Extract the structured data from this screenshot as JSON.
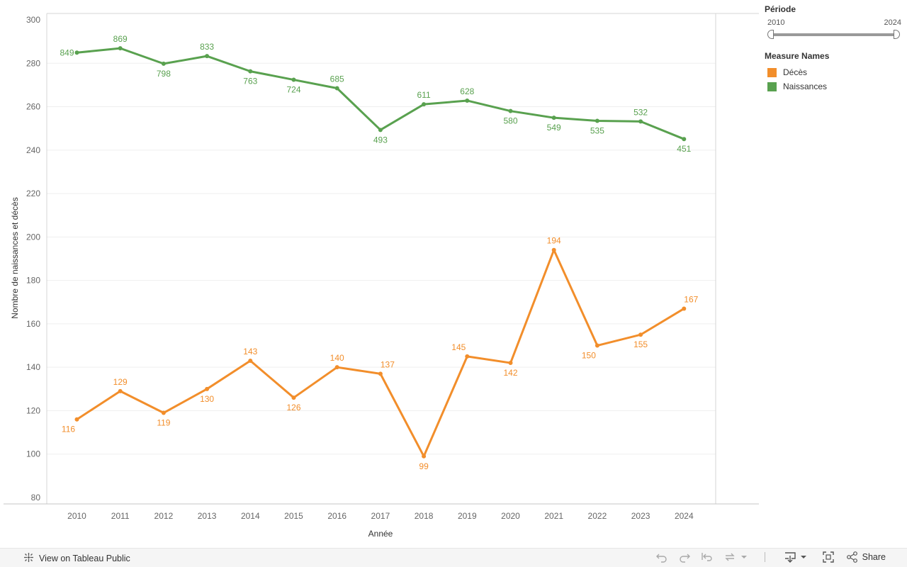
{
  "chart_data": {
    "type": "line",
    "x": [
      2010,
      2011,
      2012,
      2013,
      2014,
      2015,
      2016,
      2017,
      2018,
      2019,
      2020,
      2021,
      2022,
      2023,
      2024
    ],
    "xlabel": "Année",
    "ylabel": "Nombre de naissances et décès",
    "ylim": [
      80,
      300
    ],
    "yticks": [
      80,
      100,
      120,
      140,
      160,
      180,
      200,
      220,
      240,
      260,
      280,
      300
    ],
    "grid": true,
    "legend_position": "right",
    "series": [
      {
        "name": "Naissances",
        "color": "#59a14f",
        "values": [
          284.9,
          286.9,
          279.8,
          283.3,
          276.3,
          272.4,
          268.5,
          249.3,
          261.1,
          262.8,
          258.0,
          254.9,
          253.5,
          253.2,
          245.1
        ],
        "labels": [
          "849",
          "869",
          "798",
          "833",
          "763",
          "724",
          "685",
          "493",
          "611",
          "628",
          "580",
          "549",
          "535",
          "532",
          "451"
        ],
        "label_pos": [
          "left",
          "above",
          "below",
          "above",
          "below",
          "below",
          "above",
          "below",
          "above",
          "above",
          "below",
          "below",
          "below",
          "above",
          "below"
        ]
      },
      {
        "name": "Décès",
        "color": "#f28e2b",
        "values": [
          116,
          129,
          119,
          130,
          143,
          126,
          140,
          137,
          99,
          145,
          142,
          194,
          150,
          155,
          167
        ],
        "labels": [
          "116",
          "129",
          "119",
          "130",
          "143",
          "126",
          "140",
          "137",
          "99",
          "145",
          "142",
          "194",
          "150",
          "155",
          "167"
        ],
        "label_pos": [
          "below-left",
          "above",
          "below",
          "below",
          "above",
          "below",
          "above",
          "above-right",
          "below",
          "above-left",
          "below",
          "above",
          "below-left",
          "below",
          "above-right"
        ]
      }
    ]
  },
  "filter": {
    "title": "Période",
    "min_label": "2010",
    "max_label": "2024"
  },
  "legend": {
    "title": "Measure Names",
    "items": [
      {
        "label": "Décès",
        "color": "#f28e2b"
      },
      {
        "label": "Naissances",
        "color": "#59a14f"
      }
    ]
  },
  "toolbar": {
    "view_label": "View on Tableau Public",
    "share_label": "Share",
    "icons": [
      "undo-icon",
      "redo-icon",
      "revert-icon",
      "refresh-icon",
      "download-icon",
      "fullscreen-icon",
      "share-icon"
    ]
  }
}
